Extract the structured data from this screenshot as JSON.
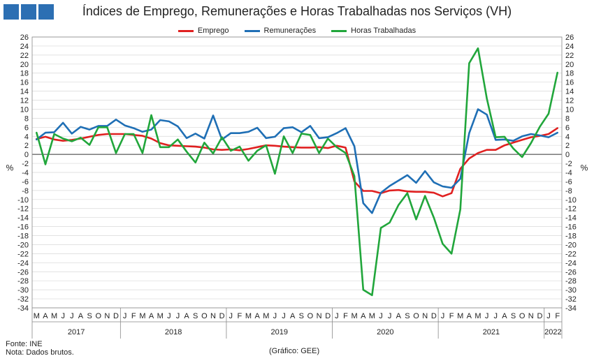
{
  "header": {
    "title": "Índices de Emprego, Remunerações e Horas Trabalhadas nos Serviços (VH)"
  },
  "footer": {
    "source": "Fonte: INE",
    "note": "Nota: Dados brutos.",
    "credit": "(Gráfico: GEE)"
  },
  "chart_data": {
    "type": "line",
    "title": "Índices de Emprego, Remunerações e Horas Trabalhadas nos Serviços (VH)",
    "ylabel_left": "%",
    "ylabel_right": "%",
    "ylim": [
      -34,
      26
    ],
    "ytick_step": 2,
    "grid": "horizontal",
    "legend_position": "top",
    "x_month_labels": [
      "M",
      "A",
      "M",
      "J",
      "J",
      "A",
      "S",
      "O",
      "N",
      "D",
      "J",
      "F",
      "M",
      "A",
      "M",
      "J",
      "J",
      "A",
      "S",
      "O",
      "N",
      "D",
      "J",
      "F",
      "M",
      "A",
      "M",
      "J",
      "J",
      "A",
      "S",
      "O",
      "N",
      "D",
      "J",
      "F",
      "M",
      "A",
      "M",
      "J",
      "J",
      "A",
      "S",
      "O",
      "N",
      "D",
      "J",
      "F",
      "M",
      "A",
      "M",
      "J",
      "J",
      "A",
      "S",
      "O",
      "N",
      "D",
      "J",
      "F"
    ],
    "year_groups": [
      {
        "label": "2017",
        "start": 0,
        "count": 10
      },
      {
        "label": "2018",
        "start": 10,
        "count": 12
      },
      {
        "label": "2019",
        "start": 22,
        "count": 12
      },
      {
        "label": "2020",
        "start": 34,
        "count": 12
      },
      {
        "label": "2021",
        "start": 46,
        "count": 12
      },
      {
        "label": "2022",
        "start": 58,
        "count": 2
      }
    ],
    "series": [
      {
        "name": "Emprego",
        "color": "#e02020",
        "values": [
          3.4,
          3.9,
          3.3,
          3.0,
          3.2,
          3.5,
          3.9,
          4.3,
          4.5,
          4.5,
          4.5,
          4.3,
          4.1,
          3.5,
          2.5,
          2.0,
          1.9,
          1.8,
          1.7,
          1.5,
          1.1,
          1.0,
          1.1,
          0.9,
          1.2,
          1.6,
          2.0,
          1.9,
          1.7,
          1.6,
          1.5,
          1.5,
          1.6,
          1.4,
          1.9,
          1.5,
          -6.0,
          -8.1,
          -8.1,
          -8.6,
          -8.0,
          -7.9,
          -8.2,
          -8.3,
          -8.3,
          -8.5,
          -9.3,
          -8.6,
          -3.2,
          -0.9,
          0.3,
          1.0,
          1.0,
          2.0,
          2.6,
          3.2,
          3.8,
          4.1,
          4.5,
          5.8
        ]
      },
      {
        "name": "Remunerações",
        "color": "#1f6fb5",
        "values": [
          3.3,
          4.8,
          4.9,
          7.0,
          4.6,
          6.1,
          5.5,
          6.3,
          6.3,
          7.7,
          6.4,
          5.8,
          5.0,
          5.5,
          7.6,
          7.3,
          6.2,
          3.6,
          4.6,
          3.5,
          8.6,
          3.3,
          4.7,
          4.7,
          5.0,
          5.9,
          3.6,
          3.9,
          5.8,
          6.0,
          4.9,
          6.3,
          3.6,
          3.8,
          4.7,
          5.8,
          1.8,
          -10.8,
          -13.0,
          -8.5,
          -7.0,
          -5.8,
          -4.6,
          -6.3,
          -3.7,
          -6.2,
          -7.1,
          -7.4,
          -5.4,
          4.7,
          10.0,
          8.8,
          3.2,
          3.3,
          3.0,
          4.0,
          4.5,
          4.2,
          3.8,
          4.8
        ]
      },
      {
        "name": "Horas Trabalhadas",
        "color": "#21a63b",
        "values": [
          4.8,
          -2.2,
          4.5,
          3.5,
          2.9,
          3.7,
          2.1,
          6.0,
          6.0,
          0.3,
          4.5,
          4.5,
          0.3,
          8.7,
          1.6,
          1.6,
          3.3,
          0.6,
          -1.8,
          2.6,
          0.2,
          3.8,
          0.8,
          1.7,
          -1.4,
          0.8,
          2.0,
          -4.3,
          4.0,
          0.3,
          4.6,
          4.3,
          0.3,
          3.5,
          1.6,
          0.3,
          -4.8,
          -30.0,
          -31.2,
          -16.3,
          -15.1,
          -11.2,
          -8.6,
          -14.4,
          -9.2,
          -14.0,
          -19.8,
          -22.0,
          -12.2,
          20.2,
          23.5,
          12.4,
          3.8,
          3.9,
          1.3,
          -0.6,
          2.5,
          6.1,
          9.0,
          18.1
        ]
      }
    ]
  }
}
